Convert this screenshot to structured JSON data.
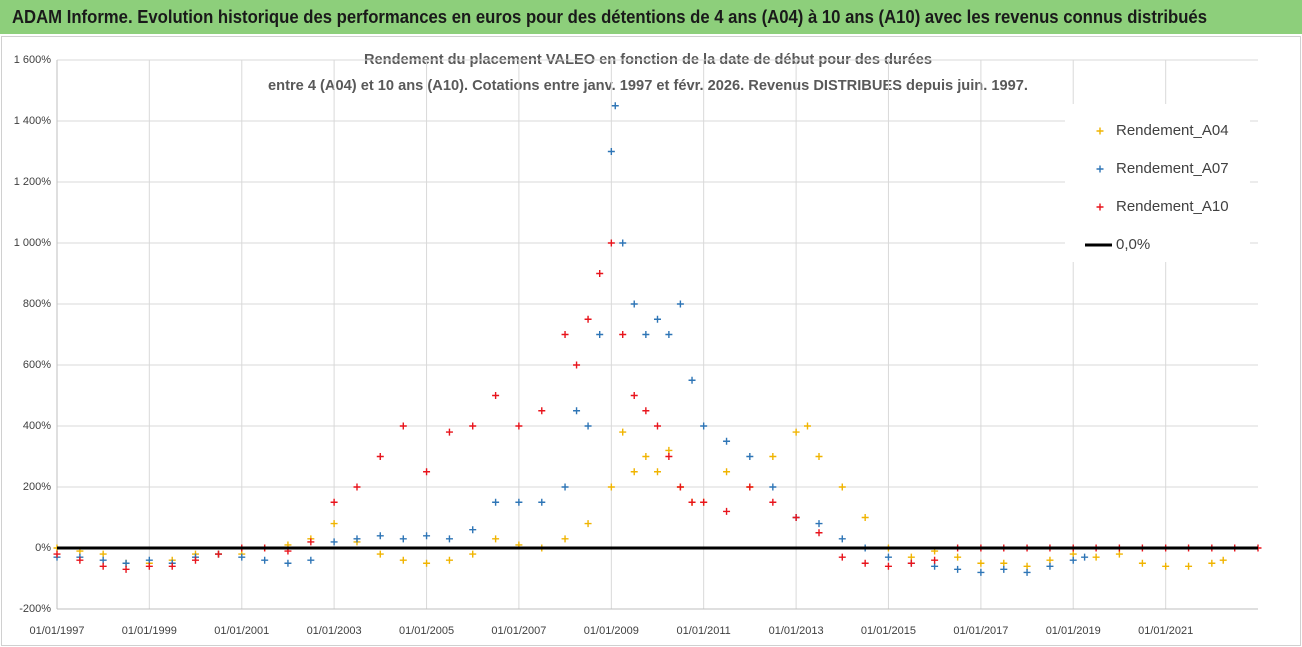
{
  "chart_data": {
    "type": "scatter",
    "header": "ADAM Informe. Evolution historique des performances en euros pour des détentions de 4 ans (A04) à 10 ans (A10) avec les revenus connus distribués",
    "title": "Rendement du placement VALEO en fonction de la date de début pour des durées",
    "subtitle": "entre 4 (A04) et 10 ans (A10). Cotations entre janv. 1997 et févr. 2026. Revenus DISTRIBUES depuis juin. 1997.",
    "xlim": [
      "01/01/1997",
      "01/01/2023"
    ],
    "xticks": [
      "01/01/1997",
      "01/01/1999",
      "01/01/2001",
      "01/01/2003",
      "01/01/2005",
      "01/01/2007",
      "01/01/2009",
      "01/01/2011",
      "01/01/2013",
      "01/01/2015",
      "01/01/2017",
      "01/01/2019",
      "01/01/2021"
    ],
    "ylim": [
      -200,
      1600
    ],
    "yticks": [
      {
        "value": -200,
        "label": "-200%"
      },
      {
        "value": 0,
        "label": "0%"
      },
      {
        "value": 200,
        "label": "200%"
      },
      {
        "value": 400,
        "label": "400%"
      },
      {
        "value": 600,
        "label": "600%"
      },
      {
        "value": 800,
        "label": "800%"
      },
      {
        "value": 1000,
        "label": "1 000%"
      },
      {
        "value": 1200,
        "label": "1 200%"
      },
      {
        "value": 1400,
        "label": "1 400%"
      },
      {
        "value": 1600,
        "label": "1 600%"
      }
    ],
    "grid": true,
    "legend": "top-right",
    "series": [
      {
        "name": "Rendement_A04",
        "color": "#f0b400",
        "marker": "+",
        "x": [
          "01/01/1997",
          "01/07/1997",
          "01/01/1998",
          "01/07/1998",
          "01/01/1999",
          "01/07/1999",
          "01/01/2000",
          "01/07/2000",
          "01/01/2001",
          "01/07/2001",
          "01/01/2002",
          "01/07/2002",
          "01/01/2003",
          "01/07/2003",
          "01/01/2004",
          "01/07/2004",
          "01/01/2005",
          "01/07/2005",
          "01/01/2006",
          "01/07/2006",
          "01/01/2007",
          "01/07/2007",
          "01/01/2008",
          "01/07/2008",
          "01/01/2009",
          "01/04/2009",
          "01/07/2009",
          "01/10/2009",
          "01/01/2010",
          "01/04/2010",
          "01/07/2010",
          "01/10/2010",
          "01/01/2011",
          "01/07/2011",
          "01/01/2012",
          "01/07/2012",
          "01/01/2013",
          "01/04/2013",
          "01/07/2013",
          "01/01/2014",
          "01/07/2014",
          "01/01/2015",
          "01/07/2015",
          "01/01/2016",
          "01/07/2016",
          "01/01/2017",
          "01/07/2017",
          "01/01/2018",
          "01/07/2018",
          "01/01/2019",
          "01/07/2019",
          "01/01/2020",
          "01/07/2020",
          "01/01/2021",
          "01/07/2021",
          "01/01/2022",
          "01/04/2022"
        ],
        "values": [
          0,
          -10,
          -20,
          -50,
          -50,
          -40,
          -20,
          -20,
          -20,
          0,
          10,
          30,
          80,
          20,
          -20,
          -40,
          -50,
          -40,
          -20,
          30,
          10,
          0,
          30,
          80,
          200,
          380,
          250,
          300,
          250,
          320,
          200,
          150,
          150,
          250,
          200,
          300,
          380,
          400,
          300,
          200,
          100,
          0,
          -30,
          -10,
          -30,
          -50,
          -50,
          -60,
          -40,
          -20,
          -30,
          -20,
          -50,
          -60,
          -60,
          -50,
          -40
        ]
      },
      {
        "name": "Rendement_A07",
        "color": "#2e75b6",
        "marker": "+",
        "x": [
          "01/01/1997",
          "01/07/1997",
          "01/01/1998",
          "01/07/1998",
          "01/01/1999",
          "01/07/1999",
          "01/01/2000",
          "01/07/2000",
          "01/01/2001",
          "01/07/2001",
          "01/01/2002",
          "01/07/2002",
          "01/01/2003",
          "01/07/2003",
          "01/01/2004",
          "01/07/2004",
          "01/01/2005",
          "01/07/2005",
          "01/01/2006",
          "01/07/2006",
          "01/01/2007",
          "01/07/2007",
          "01/01/2008",
          "01/04/2008",
          "01/07/2008",
          "01/10/2008",
          "01/01/2009",
          "01/02/2009",
          "01/04/2009",
          "01/07/2009",
          "01/10/2009",
          "01/01/2010",
          "01/04/2010",
          "01/07/2010",
          "01/10/2010",
          "01/01/2011",
          "01/07/2011",
          "01/01/2012",
          "01/07/2012",
          "01/01/2013",
          "01/07/2013",
          "01/01/2014",
          "01/07/2014",
          "01/01/2015",
          "01/07/2015",
          "01/01/2016",
          "01/07/2016",
          "01/01/2017",
          "01/07/2017",
          "01/01/2018",
          "01/07/2018",
          "01/01/2019",
          "01/04/2019"
        ],
        "values": [
          -30,
          -30,
          -40,
          -50,
          -40,
          -50,
          -30,
          -20,
          -30,
          -40,
          -50,
          -40,
          20,
          30,
          40,
          30,
          40,
          30,
          60,
          150,
          150,
          150,
          200,
          450,
          400,
          700,
          1300,
          1450,
          1000,
          800,
          700,
          750,
          700,
          800,
          550,
          400,
          350,
          300,
          200,
          100,
          80,
          30,
          0,
          -30,
          -50,
          -60,
          -70,
          -80,
          -70,
          -80,
          -60,
          -40,
          -30
        ]
      },
      {
        "name": "Rendement_A10",
        "color": "#e8141c",
        "marker": "+",
        "x": [
          "01/01/1997",
          "01/07/1997",
          "01/01/1998",
          "01/07/1998",
          "01/01/1999",
          "01/07/1999",
          "01/01/2000",
          "01/07/2000",
          "01/01/2001",
          "01/07/2001",
          "01/01/2002",
          "01/07/2002",
          "01/01/2003",
          "01/07/2003",
          "01/01/2004",
          "01/07/2004",
          "01/01/2005",
          "01/07/2005",
          "01/01/2006",
          "01/07/2006",
          "01/01/2007",
          "01/07/2007",
          "01/01/2008",
          "01/04/2008",
          "01/07/2008",
          "01/10/2008",
          "01/01/2009",
          "01/04/2009",
          "01/07/2009",
          "01/10/2009",
          "01/01/2010",
          "01/04/2010",
          "01/07/2010",
          "01/10/2010",
          "01/01/2011",
          "01/07/2011",
          "01/01/2012",
          "01/07/2012",
          "01/01/2013",
          "01/07/2013",
          "01/01/2014",
          "01/07/2014",
          "01/01/2015",
          "01/07/2015",
          "01/01/2016",
          "01/07/2016",
          "01/01/2017",
          "01/07/2017",
          "01/01/2018",
          "01/07/2018",
          "01/01/2019",
          "01/07/2019",
          "01/01/2020",
          "01/07/2020",
          "01/01/2021",
          "01/07/2021",
          "01/01/2022",
          "01/07/2022",
          "01/01/2023"
        ],
        "values": [
          -20,
          -40,
          -60,
          -70,
          -60,
          -60,
          -40,
          -20,
          0,
          0,
          -10,
          20,
          150,
          200,
          300,
          400,
          250,
          380,
          400,
          500,
          400,
          450,
          700,
          600,
          750,
          900,
          1000,
          700,
          500,
          450,
          400,
          300,
          200,
          150,
          150,
          120,
          200,
          150,
          100,
          50,
          -30,
          -50,
          -60,
          -50,
          -40,
          0,
          0,
          0,
          0,
          0,
          0,
          0,
          0,
          0,
          0,
          0,
          0,
          0,
          0
        ]
      },
      {
        "name": "0,0%",
        "color": "#000000",
        "style": "line",
        "x": [
          "01/01/1997",
          "01/01/2023"
        ],
        "values": [
          0,
          0
        ]
      }
    ]
  }
}
